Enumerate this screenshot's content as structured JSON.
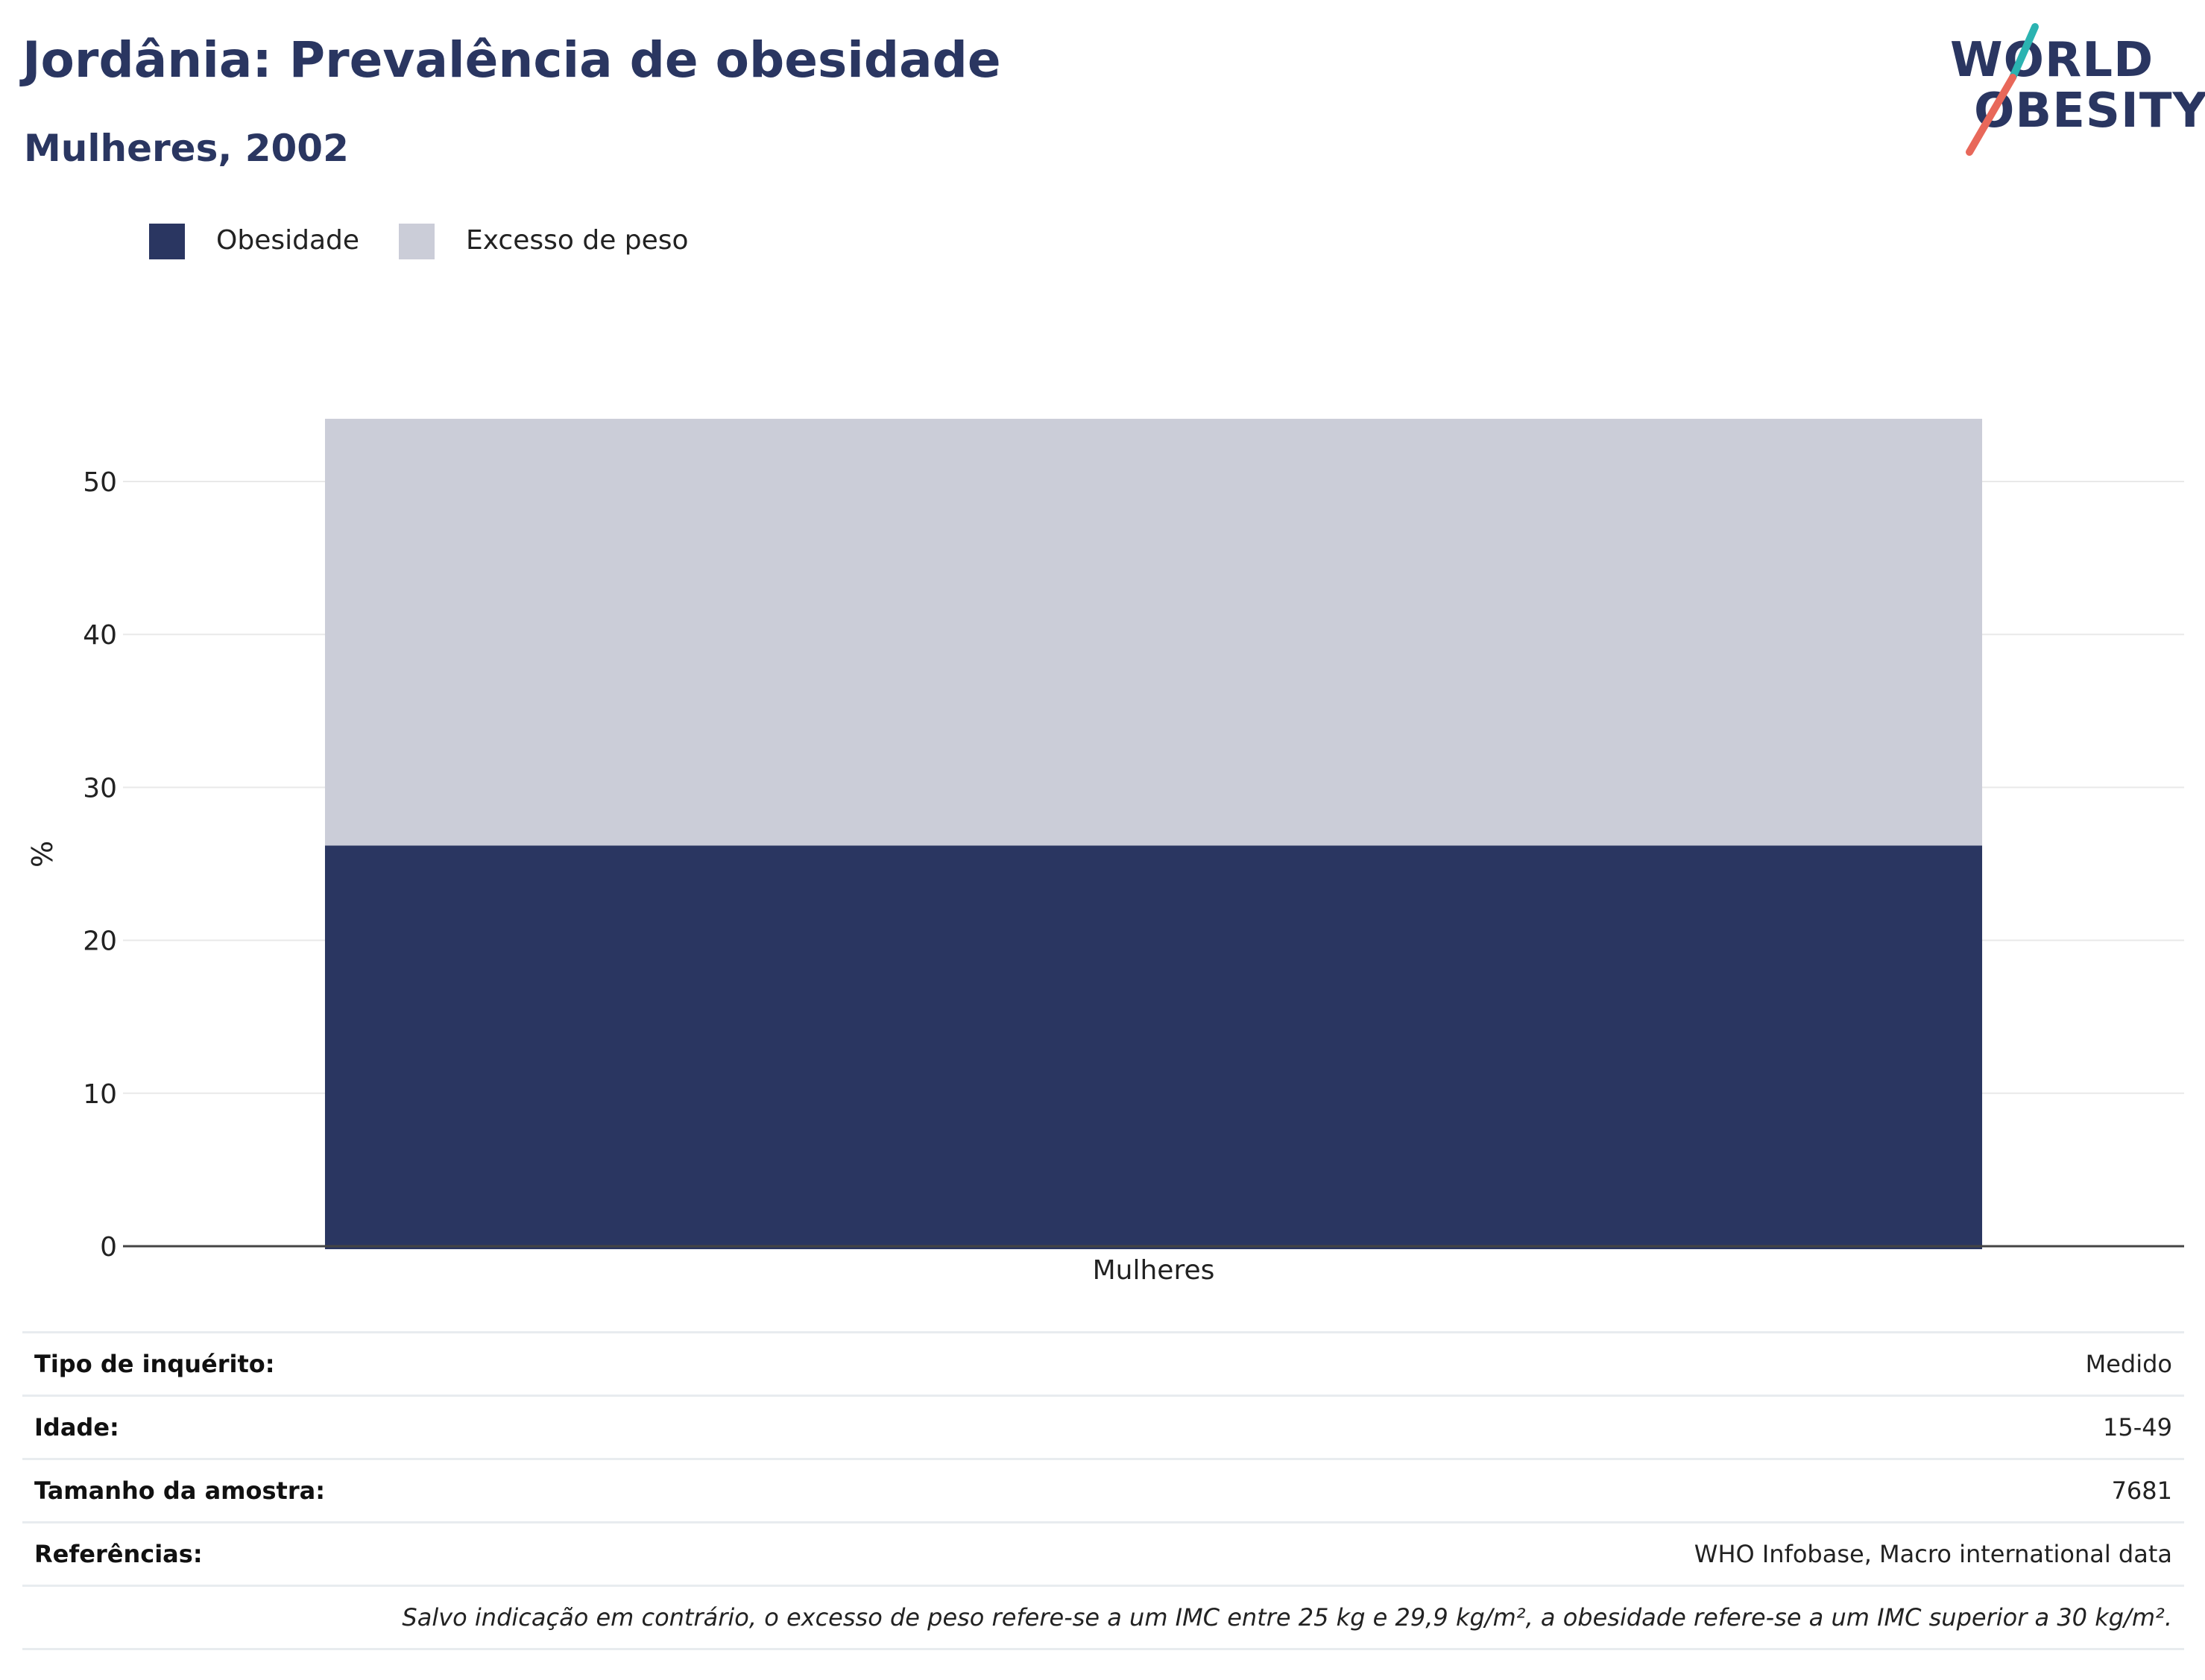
{
  "header": {
    "title": "Jordânia: Prevalência de obesidade",
    "subtitle": "Mulheres, 2002"
  },
  "logo": {
    "line1": "WORLD",
    "line2": "OBESITY",
    "text_color": "#2a3661",
    "slash_top_color": "#2bb3b1",
    "slash_bottom_color": "#e8685a"
  },
  "legend": {
    "items": [
      {
        "label": "Obesidade",
        "color": "#2a3661"
      },
      {
        "label": "Excesso de peso",
        "color": "#cbcdd8"
      }
    ]
  },
  "chart_data": {
    "type": "bar",
    "stacked": true,
    "categories": [
      "Mulheres"
    ],
    "series": [
      {
        "name": "Obesidade",
        "values": [
          26.2
        ],
        "color": "#2a3661"
      },
      {
        "name": "Excesso de peso",
        "values": [
          27.9
        ],
        "color": "#cbcdd8"
      }
    ],
    "xlabel": "",
    "ylabel": "%",
    "ylim": [
      0,
      55
    ],
    "yticks": [
      0,
      10,
      20,
      30,
      40,
      50
    ],
    "grid": true,
    "legend_position": "top-left"
  },
  "info": {
    "rows": [
      {
        "label": "Tipo de inquérito:",
        "value": "Medido"
      },
      {
        "label": "Idade:",
        "value": "15-49"
      },
      {
        "label": "Tamanho da amostra:",
        "value": "7681"
      },
      {
        "label": "Referências:",
        "value": "WHO Infobase, Macro international data"
      }
    ],
    "note": "Salvo indicação em contrário, o excesso de peso refere-se a um IMC entre 25 kg e 29,9 kg/m², a obesidade refere-se a um IMC superior a 30 kg/m²."
  }
}
